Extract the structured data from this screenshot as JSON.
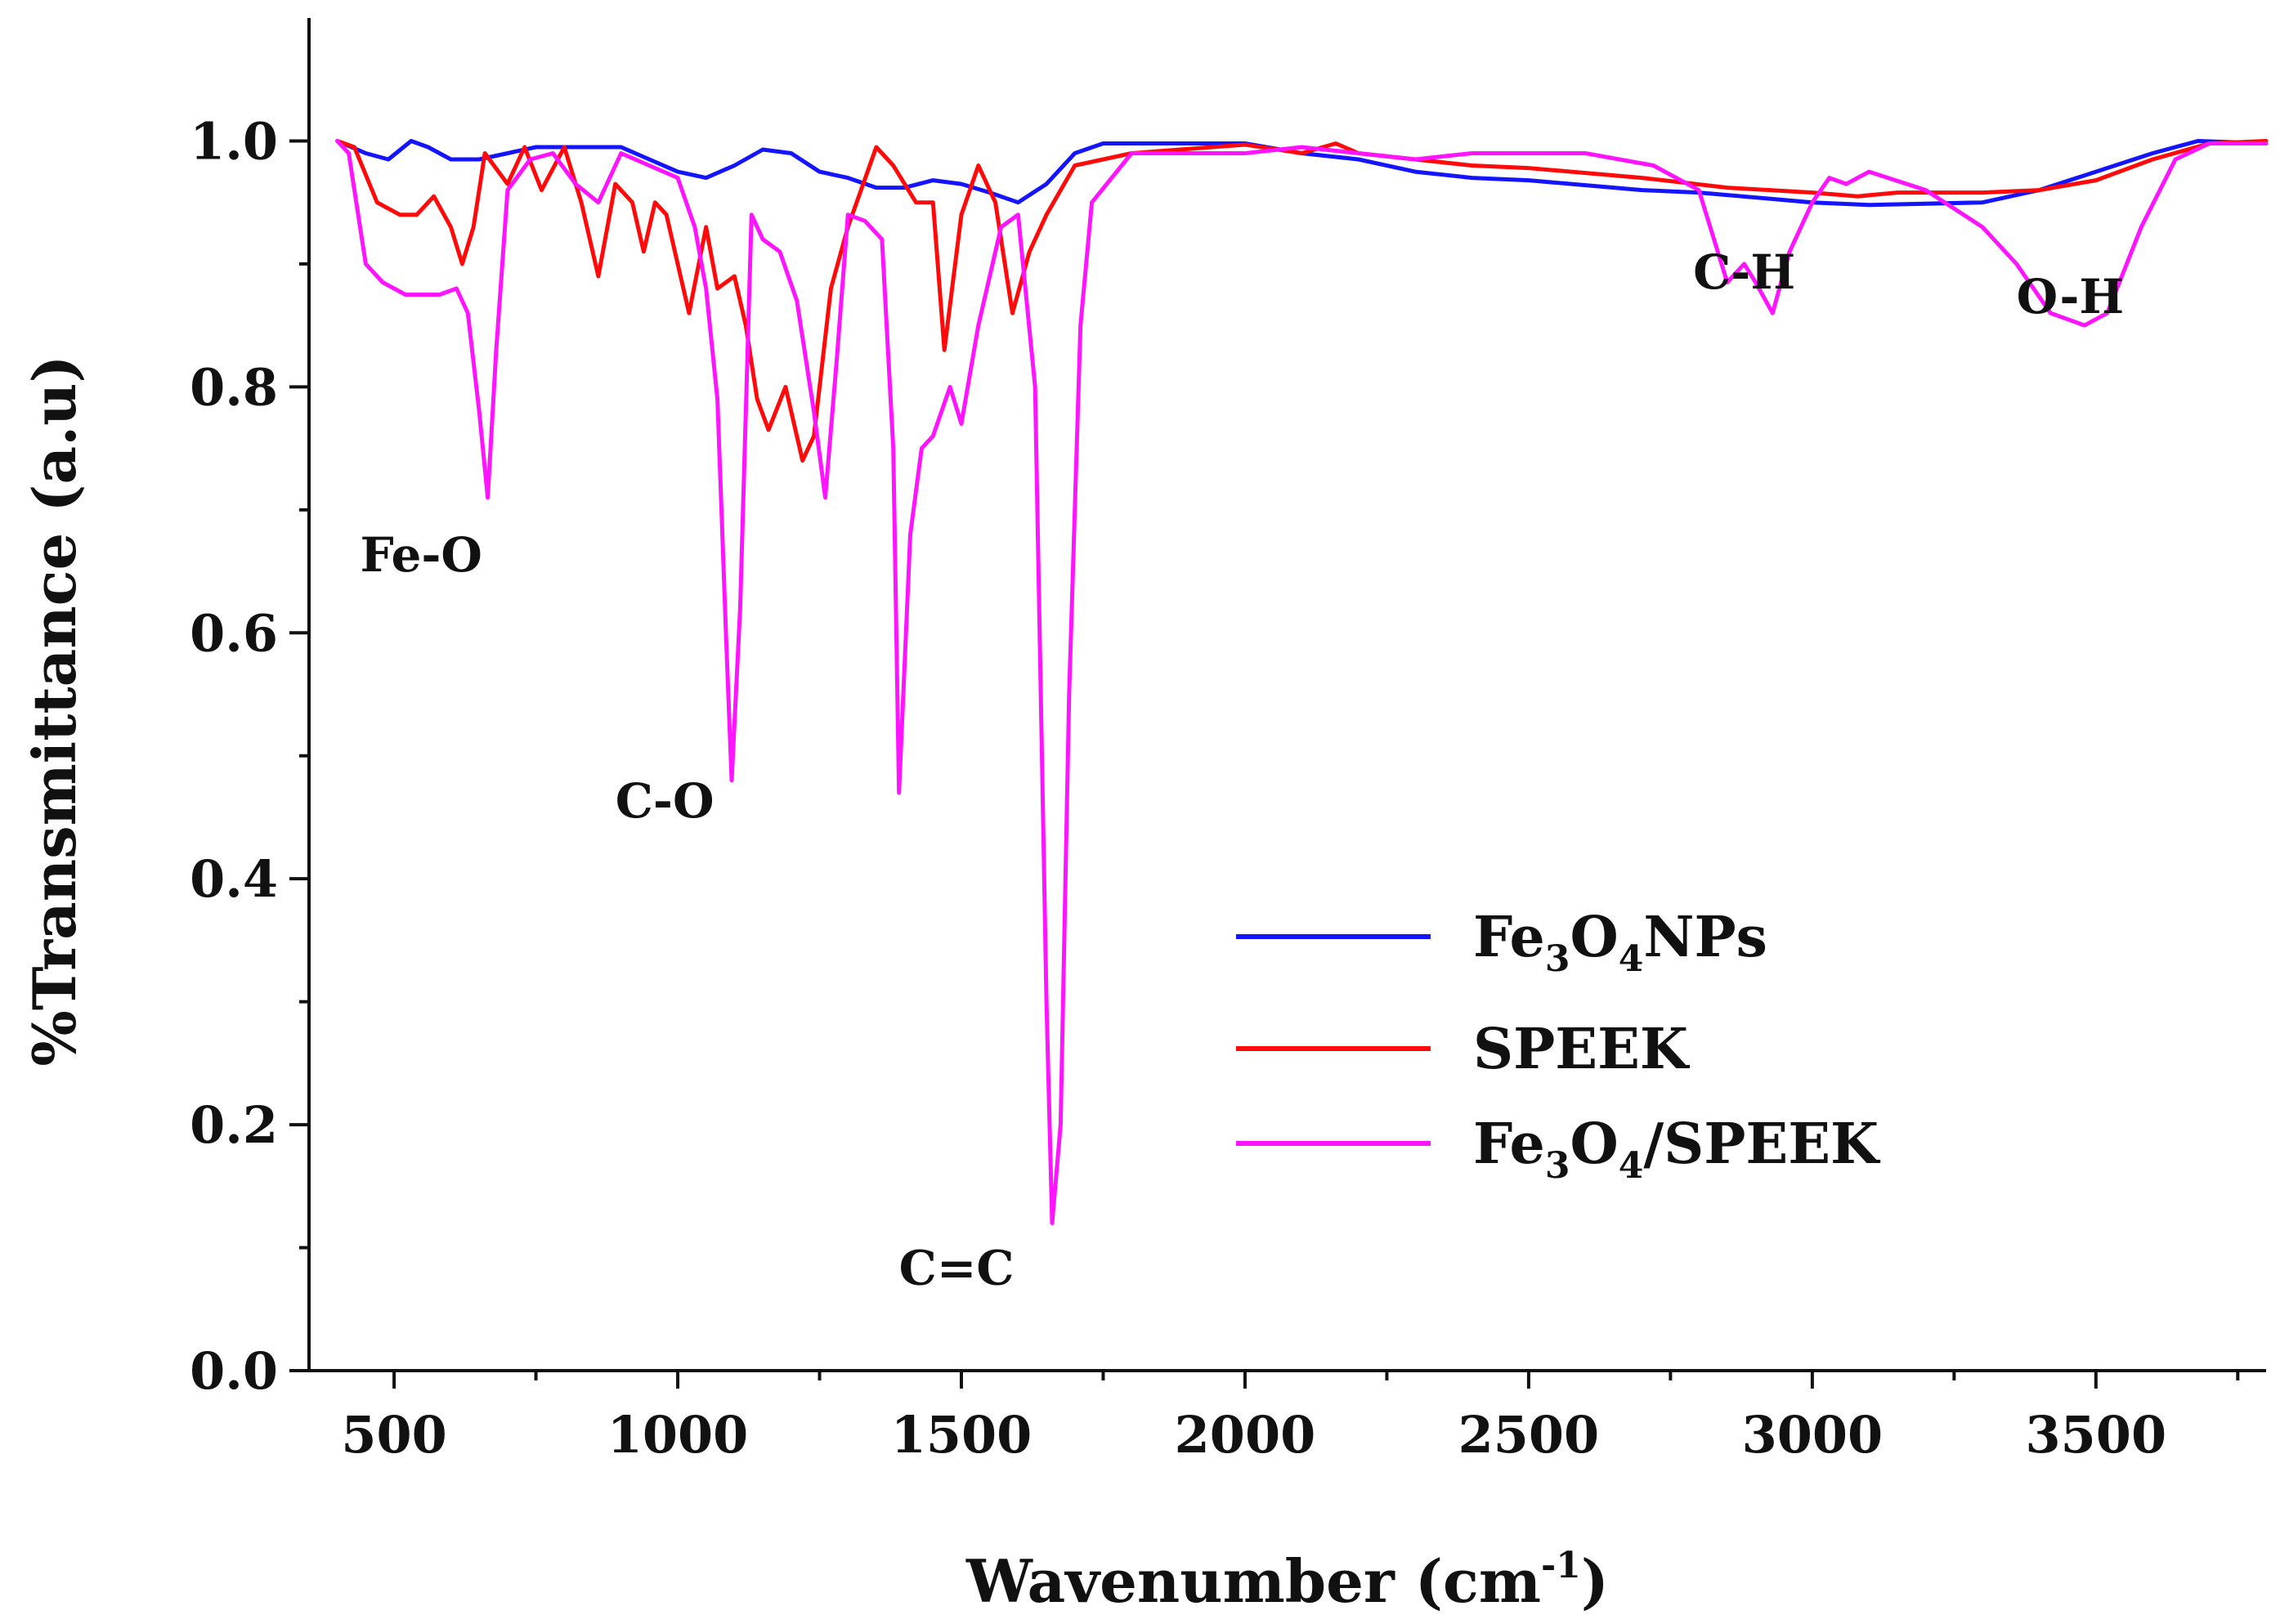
{
  "chart_data": {
    "type": "line",
    "xlabel": "Wavenumber (cm",
    "xlabel_sup": "-1",
    "xlabel_close": ")",
    "ylabel": "%Transmittance (a.u)",
    "xlim": [
      350,
      3800
    ],
    "ylim": [
      0,
      1.1
    ],
    "x_ticks": [
      500,
      1000,
      1500,
      2000,
      2500,
      3000,
      3500
    ],
    "y_ticks": [
      0.0,
      0.2,
      0.4,
      0.6,
      0.8,
      1.0
    ],
    "y_tick_labels": [
      "0.0",
      "0.2",
      "0.4",
      "0.6",
      "0.8",
      "1.0"
    ],
    "legend_position": "center-right",
    "series": [
      {
        "name": "Fe3O4NPs",
        "legend": {
          "a": "Fe",
          "s1": "3",
          "b": "O",
          "s2": "4",
          "c": "NPs"
        },
        "color": "#1414ff",
        "points": [
          [
            400,
            1.0
          ],
          [
            450,
            0.99
          ],
          [
            490,
            0.985
          ],
          [
            530,
            1.0
          ],
          [
            560,
            0.995
          ],
          [
            600,
            0.985
          ],
          [
            650,
            0.985
          ],
          [
            700,
            0.99
          ],
          [
            750,
            0.995
          ],
          [
            900,
            0.995
          ],
          [
            950,
            0.985
          ],
          [
            1000,
            0.975
          ],
          [
            1050,
            0.97
          ],
          [
            1100,
            0.98
          ],
          [
            1150,
            0.993
          ],
          [
            1200,
            0.99
          ],
          [
            1250,
            0.975
          ],
          [
            1300,
            0.97
          ],
          [
            1350,
            0.962
          ],
          [
            1400,
            0.962
          ],
          [
            1450,
            0.968
          ],
          [
            1500,
            0.965
          ],
          [
            1550,
            0.958
          ],
          [
            1600,
            0.95
          ],
          [
            1650,
            0.965
          ],
          [
            1700,
            0.99
          ],
          [
            1750,
            0.998
          ],
          [
            1850,
            0.998
          ],
          [
            2000,
            0.998
          ],
          [
            2100,
            0.99
          ],
          [
            2200,
            0.985
          ],
          [
            2300,
            0.975
          ],
          [
            2400,
            0.97
          ],
          [
            2500,
            0.968
          ],
          [
            2700,
            0.96
          ],
          [
            2800,
            0.958
          ],
          [
            3000,
            0.95
          ],
          [
            3100,
            0.948
          ],
          [
            3300,
            0.95
          ],
          [
            3400,
            0.96
          ],
          [
            3500,
            0.975
          ],
          [
            3600,
            0.99
          ],
          [
            3680,
            1.0
          ],
          [
            3800,
            0.998
          ]
        ]
      },
      {
        "name": "SPEEK",
        "legend": {
          "a": "SPEEK"
        },
        "color": "#ff0a0a",
        "points": [
          [
            400,
            1.0
          ],
          [
            430,
            0.995
          ],
          [
            470,
            0.95
          ],
          [
            510,
            0.94
          ],
          [
            540,
            0.94
          ],
          [
            570,
            0.955
          ],
          [
            600,
            0.93
          ],
          [
            620,
            0.9
          ],
          [
            640,
            0.93
          ],
          [
            660,
            0.99
          ],
          [
            700,
            0.965
          ],
          [
            730,
            0.995
          ],
          [
            760,
            0.96
          ],
          [
            800,
            0.995
          ],
          [
            830,
            0.95
          ],
          [
            860,
            0.89
          ],
          [
            890,
            0.965
          ],
          [
            920,
            0.95
          ],
          [
            940,
            0.91
          ],
          [
            960,
            0.95
          ],
          [
            980,
            0.94
          ],
          [
            1000,
            0.9
          ],
          [
            1020,
            0.86
          ],
          [
            1050,
            0.93
          ],
          [
            1070,
            0.88
          ],
          [
            1100,
            0.89
          ],
          [
            1120,
            0.85
          ],
          [
            1140,
            0.79
          ],
          [
            1160,
            0.765
          ],
          [
            1190,
            0.8
          ],
          [
            1220,
            0.74
          ],
          [
            1240,
            0.76
          ],
          [
            1270,
            0.88
          ],
          [
            1300,
            0.93
          ],
          [
            1350,
            0.995
          ],
          [
            1380,
            0.98
          ],
          [
            1420,
            0.95
          ],
          [
            1450,
            0.95
          ],
          [
            1470,
            0.83
          ],
          [
            1500,
            0.94
          ],
          [
            1530,
            0.98
          ],
          [
            1560,
            0.95
          ],
          [
            1590,
            0.86
          ],
          [
            1620,
            0.91
          ],
          [
            1650,
            0.94
          ],
          [
            1700,
            0.98
          ],
          [
            1800,
            0.99
          ],
          [
            2000,
            0.997
          ],
          [
            2100,
            0.99
          ],
          [
            2160,
            0.998
          ],
          [
            2200,
            0.99
          ],
          [
            2400,
            0.98
          ],
          [
            2500,
            0.978
          ],
          [
            2700,
            0.97
          ],
          [
            2850,
            0.962
          ],
          [
            3000,
            0.958
          ],
          [
            3080,
            0.955
          ],
          [
            3150,
            0.958
          ],
          [
            3300,
            0.958
          ],
          [
            3400,
            0.96
          ],
          [
            3500,
            0.968
          ],
          [
            3600,
            0.985
          ],
          [
            3700,
            0.998
          ],
          [
            3800,
            1.0
          ]
        ]
      },
      {
        "name": "Fe3O4/SPEEK",
        "legend": {
          "a": "Fe",
          "s1": "3",
          "b": "O",
          "s2": "4",
          "c": "/SPEEK"
        },
        "color": "#ff14ff",
        "points": [
          [
            400,
            1.0
          ],
          [
            420,
            0.99
          ],
          [
            450,
            0.9
          ],
          [
            480,
            0.885
          ],
          [
            520,
            0.875
          ],
          [
            580,
            0.875
          ],
          [
            610,
            0.88
          ],
          [
            630,
            0.86
          ],
          [
            650,
            0.78
          ],
          [
            665,
            0.71
          ],
          [
            680,
            0.83
          ],
          [
            700,
            0.96
          ],
          [
            740,
            0.985
          ],
          [
            780,
            0.99
          ],
          [
            820,
            0.965
          ],
          [
            860,
            0.95
          ],
          [
            900,
            0.99
          ],
          [
            950,
            0.98
          ],
          [
            1000,
            0.97
          ],
          [
            1030,
            0.93
          ],
          [
            1050,
            0.88
          ],
          [
            1070,
            0.79
          ],
          [
            1085,
            0.6
          ],
          [
            1095,
            0.48
          ],
          [
            1110,
            0.62
          ],
          [
            1130,
            0.94
          ],
          [
            1150,
            0.92
          ],
          [
            1180,
            0.91
          ],
          [
            1210,
            0.87
          ],
          [
            1240,
            0.78
          ],
          [
            1260,
            0.71
          ],
          [
            1280,
            0.82
          ],
          [
            1300,
            0.94
          ],
          [
            1330,
            0.935
          ],
          [
            1360,
            0.92
          ],
          [
            1380,
            0.75
          ],
          [
            1390,
            0.47
          ],
          [
            1410,
            0.68
          ],
          [
            1430,
            0.75
          ],
          [
            1450,
            0.76
          ],
          [
            1480,
            0.8
          ],
          [
            1500,
            0.77
          ],
          [
            1530,
            0.85
          ],
          [
            1570,
            0.93
          ],
          [
            1600,
            0.94
          ],
          [
            1630,
            0.8
          ],
          [
            1650,
            0.3
          ],
          [
            1660,
            0.12
          ],
          [
            1675,
            0.2
          ],
          [
            1690,
            0.55
          ],
          [
            1710,
            0.85
          ],
          [
            1730,
            0.95
          ],
          [
            1800,
            0.99
          ],
          [
            1900,
            0.99
          ],
          [
            2000,
            0.99
          ],
          [
            2100,
            0.995
          ],
          [
            2200,
            0.99
          ],
          [
            2300,
            0.985
          ],
          [
            2400,
            0.99
          ],
          [
            2600,
            0.99
          ],
          [
            2720,
            0.98
          ],
          [
            2800,
            0.96
          ],
          [
            2850,
            0.885
          ],
          [
            2880,
            0.9
          ],
          [
            2900,
            0.885
          ],
          [
            2930,
            0.86
          ],
          [
            2960,
            0.91
          ],
          [
            3000,
            0.95
          ],
          [
            3030,
            0.97
          ],
          [
            3060,
            0.965
          ],
          [
            3100,
            0.975
          ],
          [
            3200,
            0.96
          ],
          [
            3300,
            0.93
          ],
          [
            3360,
            0.9
          ],
          [
            3420,
            0.86
          ],
          [
            3480,
            0.85
          ],
          [
            3520,
            0.86
          ],
          [
            3580,
            0.93
          ],
          [
            3640,
            0.985
          ],
          [
            3700,
            0.998
          ],
          [
            3800,
            0.998
          ]
        ]
      }
    ],
    "annotations": [
      {
        "text": "Fe-O",
        "x": 440,
        "y": 0.65
      },
      {
        "text": "C-O",
        "x": 890,
        "y": 0.45
      },
      {
        "text": "C=C",
        "x": 1390,
        "y": 0.07
      },
      {
        "text": "C-H",
        "x": 2790,
        "y": 0.88
      },
      {
        "text": "O-H",
        "x": 3360,
        "y": 0.86
      }
    ]
  }
}
